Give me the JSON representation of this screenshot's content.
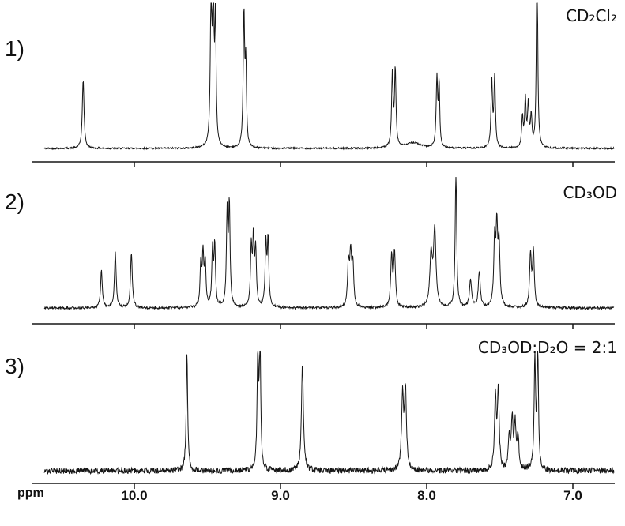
{
  "chart_data": {
    "type": "line",
    "kind": "stacked-1H-NMR-spectra",
    "xlabel": "ppm",
    "x_axis_reversed": true,
    "x_range_ppm": [
      10.62,
      6.71
    ],
    "x_ticks": [
      10.0,
      9.0,
      8.0,
      7.0
    ],
    "tick_labels": [
      "10.0",
      "9.0",
      "8.0",
      "7.0"
    ],
    "peaks_format": [
      "ppm",
      "relative_height",
      "halfwidth_ppm"
    ],
    "spectra": [
      {
        "index_label": "1)",
        "solvent_label": "CD₂Cl₂",
        "noise": 0.006,
        "peaks": [
          [
            10.35,
            0.5,
            0.007
          ],
          [
            9.475,
            1.05,
            0.006
          ],
          [
            9.46,
            1.1,
            0.006
          ],
          [
            9.445,
            0.9,
            0.005
          ],
          [
            9.25,
            0.97,
            0.006
          ],
          [
            9.237,
            0.55,
            0.005
          ],
          [
            8.09,
            0.04,
            0.06
          ],
          [
            8.235,
            0.52,
            0.006
          ],
          [
            8.215,
            0.56,
            0.006
          ],
          [
            7.93,
            0.5,
            0.006
          ],
          [
            7.915,
            0.45,
            0.005
          ],
          [
            7.555,
            0.48,
            0.006
          ],
          [
            7.535,
            0.5,
            0.006
          ],
          [
            7.345,
            0.22,
            0.006
          ],
          [
            7.325,
            0.34,
            0.006
          ],
          [
            7.305,
            0.3,
            0.006
          ],
          [
            7.285,
            0.22,
            0.006
          ],
          [
            7.245,
            1.6,
            0.005
          ]
        ]
      },
      {
        "index_label": "2)",
        "solvent_label": "CD₃OD",
        "noise": 0.01,
        "peaks": [
          [
            10.225,
            0.3,
            0.007
          ],
          [
            10.13,
            0.44,
            0.007
          ],
          [
            10.02,
            0.44,
            0.007
          ],
          [
            9.545,
            0.34,
            0.006
          ],
          [
            9.53,
            0.4,
            0.006
          ],
          [
            9.515,
            0.34,
            0.006
          ],
          [
            9.465,
            0.44,
            0.006
          ],
          [
            9.45,
            0.48,
            0.006
          ],
          [
            9.365,
            0.72,
            0.006
          ],
          [
            9.35,
            0.78,
            0.006
          ],
          [
            9.2,
            0.46,
            0.006
          ],
          [
            9.185,
            0.52,
            0.006
          ],
          [
            9.17,
            0.44,
            0.006
          ],
          [
            9.1,
            0.5,
            0.006
          ],
          [
            9.085,
            0.52,
            0.006
          ],
          [
            8.535,
            0.34,
            0.007
          ],
          [
            8.52,
            0.4,
            0.007
          ],
          [
            8.505,
            0.33,
            0.007
          ],
          [
            8.24,
            0.4,
            0.007
          ],
          [
            8.22,
            0.44,
            0.007
          ],
          [
            7.97,
            0.4,
            0.01
          ],
          [
            7.945,
            0.6,
            0.01
          ],
          [
            7.8,
            1.1,
            0.006
          ],
          [
            7.7,
            0.22,
            0.008
          ],
          [
            7.64,
            0.28,
            0.008
          ],
          [
            7.535,
            0.52,
            0.007
          ],
          [
            7.52,
            0.58,
            0.007
          ],
          [
            7.505,
            0.48,
            0.007
          ],
          [
            7.29,
            0.42,
            0.007
          ],
          [
            7.27,
            0.44,
            0.007
          ]
        ]
      },
      {
        "index_label": "3)",
        "solvent_label": "CD₃OD:D₂O = 2:1",
        "noise": 0.025,
        "peaks": [
          [
            9.64,
            1.0,
            0.006
          ],
          [
            9.155,
            0.95,
            0.006
          ],
          [
            9.14,
            1.0,
            0.006
          ],
          [
            8.85,
            0.9,
            0.008
          ],
          [
            8.165,
            0.62,
            0.008
          ],
          [
            8.145,
            0.66,
            0.008
          ],
          [
            7.53,
            0.62,
            0.007
          ],
          [
            7.51,
            0.66,
            0.007
          ],
          [
            7.435,
            0.28,
            0.007
          ],
          [
            7.415,
            0.42,
            0.007
          ],
          [
            7.395,
            0.38,
            0.007
          ],
          [
            7.375,
            0.28,
            0.007
          ],
          [
            7.26,
            0.92,
            0.006
          ],
          [
            7.24,
            0.96,
            0.006
          ]
        ]
      }
    ],
    "line_color": "#161616",
    "axis_color": "#161616"
  }
}
